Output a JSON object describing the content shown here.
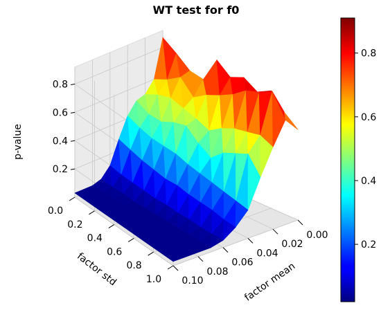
{
  "chart_data": {
    "type": "surface3d",
    "title": "WT test for f0",
    "xlabel": "factor mean",
    "ylabel": "factor std",
    "zlabel": "p-value",
    "x": [
      0.0,
      0.01,
      0.02,
      0.03,
      0.04,
      0.05,
      0.06,
      0.07,
      0.08,
      0.09,
      0.1
    ],
    "y": [
      0.0,
      0.1,
      0.2,
      0.3,
      0.4,
      0.5,
      0.6,
      0.7,
      0.8,
      0.9,
      1.0
    ],
    "z_grid": [
      [
        0.87,
        0.6,
        0.52,
        0.5,
        0.42,
        0.28,
        0.12,
        0.05,
        0.03,
        0.03,
        0.03
      ],
      [
        0.8,
        0.64,
        0.56,
        0.45,
        0.38,
        0.25,
        0.1,
        0.04,
        0.03,
        0.03,
        0.03
      ],
      [
        0.72,
        0.7,
        0.58,
        0.44,
        0.35,
        0.22,
        0.09,
        0.04,
        0.03,
        0.03,
        0.03
      ],
      [
        0.7,
        0.6,
        0.55,
        0.48,
        0.34,
        0.2,
        0.08,
        0.03,
        0.03,
        0.03,
        0.03
      ],
      [
        0.88,
        0.66,
        0.52,
        0.5,
        0.33,
        0.18,
        0.07,
        0.03,
        0.03,
        0.03,
        0.03
      ],
      [
        0.8,
        0.7,
        0.48,
        0.42,
        0.3,
        0.18,
        0.07,
        0.03,
        0.03,
        0.03,
        0.03
      ],
      [
        0.84,
        0.75,
        0.54,
        0.36,
        0.28,
        0.16,
        0.06,
        0.03,
        0.03,
        0.03,
        0.03
      ],
      [
        0.78,
        0.82,
        0.58,
        0.44,
        0.26,
        0.15,
        0.06,
        0.03,
        0.03,
        0.03,
        0.03
      ],
      [
        0.83,
        0.85,
        0.6,
        0.48,
        0.24,
        0.14,
        0.05,
        0.03,
        0.03,
        0.03,
        0.03
      ],
      [
        0.72,
        0.9,
        0.62,
        0.52,
        0.22,
        0.12,
        0.05,
        0.03,
        0.03,
        0.03,
        0.03
      ],
      [
        0.64,
        0.74,
        0.58,
        0.4,
        0.2,
        0.11,
        0.05,
        0.03,
        0.03,
        0.03,
        0.03
      ]
    ],
    "x_ticks": [
      "0.00",
      "0.02",
      "0.04",
      "0.06",
      "0.08",
      "0.10"
    ],
    "y_ticks": [
      "0.0",
      "0.2",
      "0.4",
      "0.6",
      "0.8",
      "1.0"
    ],
    "z_ticks": [
      "0.2",
      "0.4",
      "0.6",
      "0.8"
    ],
    "colorbar_ticks": [
      "0.2",
      "0.4",
      "0.6",
      "0.8"
    ],
    "colorbar_range": [
      0.02,
      0.91
    ],
    "zlim": [
      0.0,
      0.92
    ],
    "colormap": "jet",
    "grid": true
  }
}
